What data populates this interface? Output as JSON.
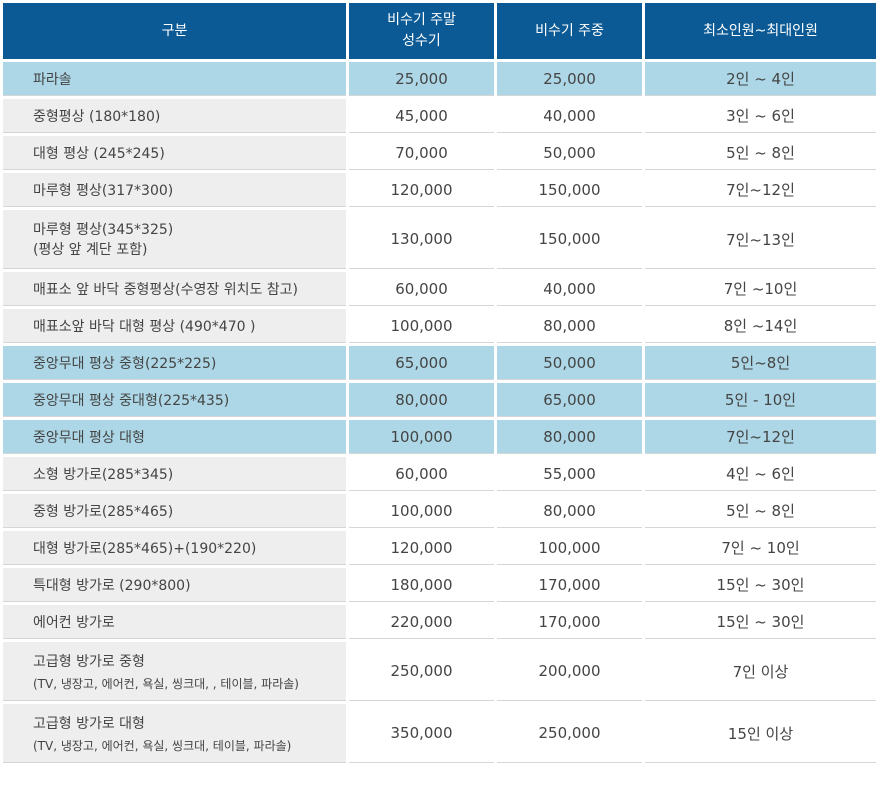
{
  "headers": [
    "구분",
    "비수기 주말\n성수기",
    "비수기 주중",
    "최소인원~최대인원"
  ],
  "header_lines": {
    "col1_line1": "비수기 주말",
    "col1_line2": "성수기"
  },
  "colors": {
    "header_bg": "#0b5a95",
    "highlight_bg": "#add7e6",
    "name_bg": "#eeeeee"
  },
  "rows": [
    {
      "name": "파라솔",
      "weekend": "25,000",
      "weekday": "25,000",
      "capacity": "2인 ~ 4인",
      "highlight": true
    },
    {
      "name": "중형평상 (180*180)",
      "weekend": "45,000",
      "weekday": "40,000",
      "capacity": "3인 ~ 6인",
      "highlight": false
    },
    {
      "name": "대형 평상 (245*245)",
      "weekend": "70,000",
      "weekday": "50,000",
      "capacity": "5인 ~ 8인",
      "highlight": false
    },
    {
      "name": "마루형 평상(317*300)",
      "weekend": "120,000",
      "weekday": "150,000",
      "capacity": "7인~12인",
      "highlight": false
    },
    {
      "name": "마루형 평상(345*325)",
      "name2": "(평상 앞 계단 포함)",
      "weekend": "130,000",
      "weekday": "150,000",
      "capacity": "7인~13인",
      "highlight": false
    },
    {
      "name": "매표소 앞 바닥 중형평상(수영장 위치도 참고)",
      "weekend": "60,000",
      "weekday": "40,000",
      "capacity": "7인 ~10인",
      "highlight": false
    },
    {
      "name": "매표소앞 바닥 대형 평상 (490*470 )",
      "weekend": "100,000",
      "weekday": "80,000",
      "capacity": "8인 ~14인",
      "highlight": false
    },
    {
      "name": "중앙무대 평상 중형(225*225)",
      "weekend": "65,000",
      "weekday": "50,000",
      "capacity": "5인~8인",
      "highlight": true
    },
    {
      "name": "중앙무대 평상 중대형(225*435)",
      "weekend": "80,000",
      "weekday": "65,000",
      "capacity": "5인 - 10인",
      "highlight": true
    },
    {
      "name": "중앙무대 평상 대형",
      "weekend": "100,000",
      "weekday": "80,000",
      "capacity": "7인~12인",
      "highlight": true
    },
    {
      "name": "소형 방가로(285*345)",
      "weekend": "60,000",
      "weekday": "55,000",
      "capacity": "4인 ~ 6인",
      "highlight": false
    },
    {
      "name": "중형 방가로(285*465)",
      "weekend": "100,000",
      "weekday": "80,000",
      "capacity": "5인 ~ 8인",
      "highlight": false
    },
    {
      "name": "대형 방가로(285*465)+(190*220)",
      "weekend": "120,000",
      "weekday": "100,000",
      "capacity": "7인 ~ 10인",
      "highlight": false
    },
    {
      "name": "특대형 방가로 (290*800)",
      "weekend": "180,000",
      "weekday": "170,000",
      "capacity": "15인 ~ 30인",
      "highlight": false
    },
    {
      "name": "에어컨 방가로",
      "weekend": "220,000",
      "weekday": "170,000",
      "capacity": "15인 ~ 30인",
      "highlight": false
    },
    {
      "name": "고급형 방가로 중형",
      "sub": "(TV, 냉장고, 에어컨, 욕실, 씽크대, , 테이블, 파라솔)",
      "weekend": "250,000",
      "weekday": "200,000",
      "capacity": "7인 이상",
      "highlight": false
    },
    {
      "name": "고급형 방가로 대형",
      "sub": "(TV, 냉장고, 에어컨, 욕실, 씽크대, 테이블, 파라솔)",
      "weekend": "350,000",
      "weekday": "250,000",
      "capacity": "15인 이상",
      "highlight": false
    }
  ]
}
